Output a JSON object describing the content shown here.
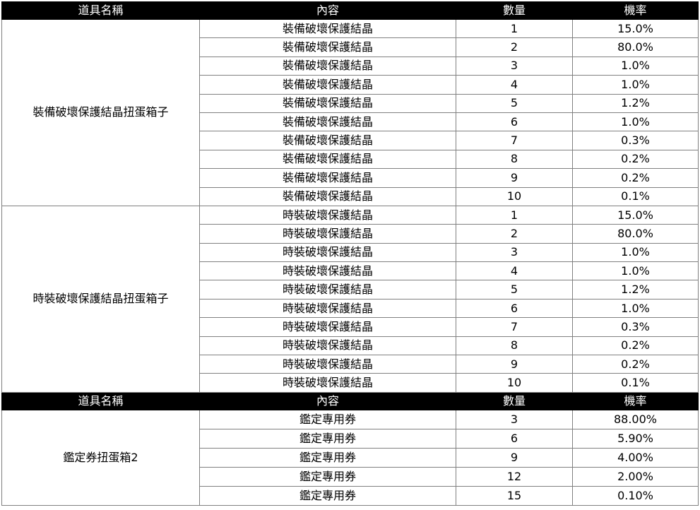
{
  "headers": [
    "道具名稱",
    "內容",
    "數量",
    "機率"
  ],
  "sections": [
    {
      "name": "裝備破壞保護結晶扭蛋箱子",
      "rows": [
        {
          "content": "裝備破壞保護結晶",
          "qty": "1",
          "rate": "15.0%"
        },
        {
          "content": "裝備破壞保護結晶",
          "qty": "2",
          "rate": "80.0%"
        },
        {
          "content": "裝備破壞保護結晶",
          "qty": "3",
          "rate": "1.0%"
        },
        {
          "content": "裝備破壞保護結晶",
          "qty": "4",
          "rate": "1.0%"
        },
        {
          "content": "裝備破壞保護結晶",
          "qty": "5",
          "rate": "1.2%"
        },
        {
          "content": "裝備破壞保護結晶",
          "qty": "6",
          "rate": "1.0%"
        },
        {
          "content": "裝備破壞保護結晶",
          "qty": "7",
          "rate": "0.3%"
        },
        {
          "content": "裝備破壞保護結晶",
          "qty": "8",
          "rate": "0.2%"
        },
        {
          "content": "裝備破壞保護結晶",
          "qty": "9",
          "rate": "0.2%"
        },
        {
          "content": "裝備破壞保護結晶",
          "qty": "10",
          "rate": "0.1%"
        }
      ]
    },
    {
      "name": "時裝破壞保護結晶扭蛋箱子",
      "rows": [
        {
          "content": "時裝破壞保護結晶",
          "qty": "1",
          "rate": "15.0%"
        },
        {
          "content": "時裝破壞保護結晶",
          "qty": "2",
          "rate": "80.0%"
        },
        {
          "content": "時裝破壞保護結晶",
          "qty": "3",
          "rate": "1.0%"
        },
        {
          "content": "時裝破壞保護結晶",
          "qty": "4",
          "rate": "1.0%"
        },
        {
          "content": "時裝破壞保護結晶",
          "qty": "5",
          "rate": "1.2%"
        },
        {
          "content": "時裝破壞保護結晶",
          "qty": "6",
          "rate": "1.0%"
        },
        {
          "content": "時裝破壞保護結晶",
          "qty": "7",
          "rate": "0.3%"
        },
        {
          "content": "時裝破壞保護結晶",
          "qty": "8",
          "rate": "0.2%"
        },
        {
          "content": "時裝破壞保護結晶",
          "qty": "9",
          "rate": "0.2%"
        },
        {
          "content": "時裝破壞保護結晶",
          "qty": "10",
          "rate": "0.1%"
        }
      ]
    },
    {
      "header_before": true,
      "name": "鑑定券扭蛋箱2",
      "rows": [
        {
          "content": "鑑定專用券",
          "qty": "3",
          "rate": "88.00%"
        },
        {
          "content": "鑑定專用券",
          "qty": "6",
          "rate": "5.90%"
        },
        {
          "content": "鑑定專用券",
          "qty": "9",
          "rate": "4.00%"
        },
        {
          "content": "鑑定專用券",
          "qty": "12",
          "rate": "2.00%"
        },
        {
          "content": "鑑定專用券",
          "qty": "15",
          "rate": "0.10%"
        }
      ]
    }
  ]
}
